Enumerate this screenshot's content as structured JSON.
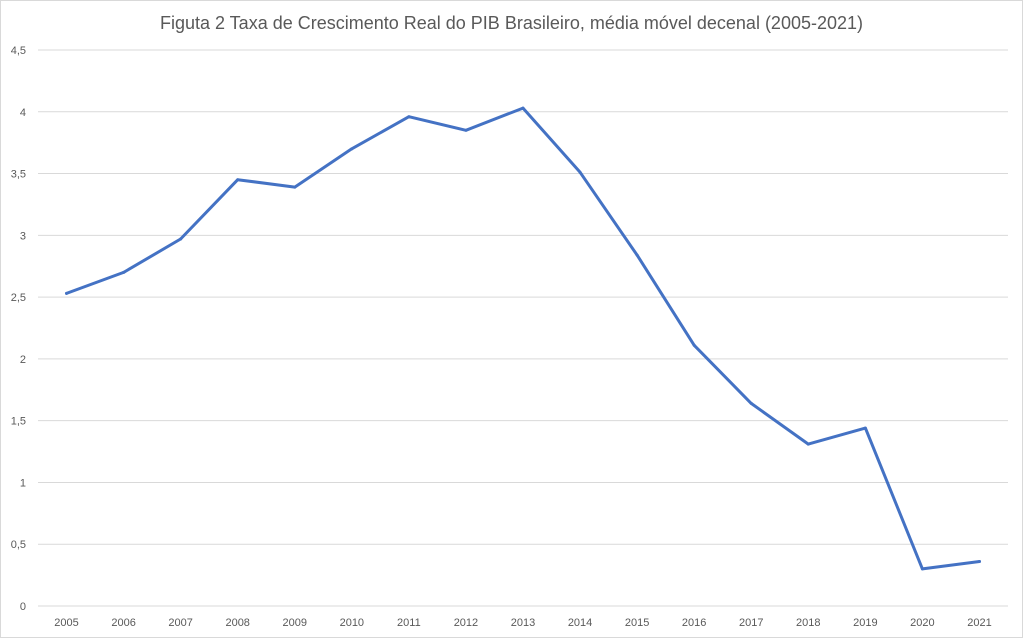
{
  "chart_data": {
    "type": "line",
    "title": "Figuta 2 Taxa de Crescimento Real do PIB Brasileiro, média móvel decenal (2005-2021)",
    "xlabel": "",
    "ylabel": "",
    "categories": [
      "2005",
      "2006",
      "2007",
      "2008",
      "2009",
      "2010",
      "2011",
      "2012",
      "2013",
      "2014",
      "2015",
      "2016",
      "2017",
      "2018",
      "2019",
      "2020",
      "2021"
    ],
    "series": [
      {
        "values": [
          2.53,
          2.7,
          2.97,
          3.45,
          3.39,
          3.7,
          3.96,
          3.85,
          4.03,
          3.51,
          2.84,
          2.11,
          1.64,
          1.31,
          1.44,
          0.3,
          0.36
        ],
        "color": "#4472c4"
      }
    ],
    "ylim": [
      0,
      4.5
    ],
    "yticks": [
      "0",
      "0,5",
      "1",
      "1,5",
      "2",
      "2,5",
      "3",
      "3,5",
      "4",
      "4,5"
    ],
    "grid": true,
    "legend": "none",
    "colors": {
      "gridline": "#d9d9d9",
      "text": "#595959"
    }
  }
}
